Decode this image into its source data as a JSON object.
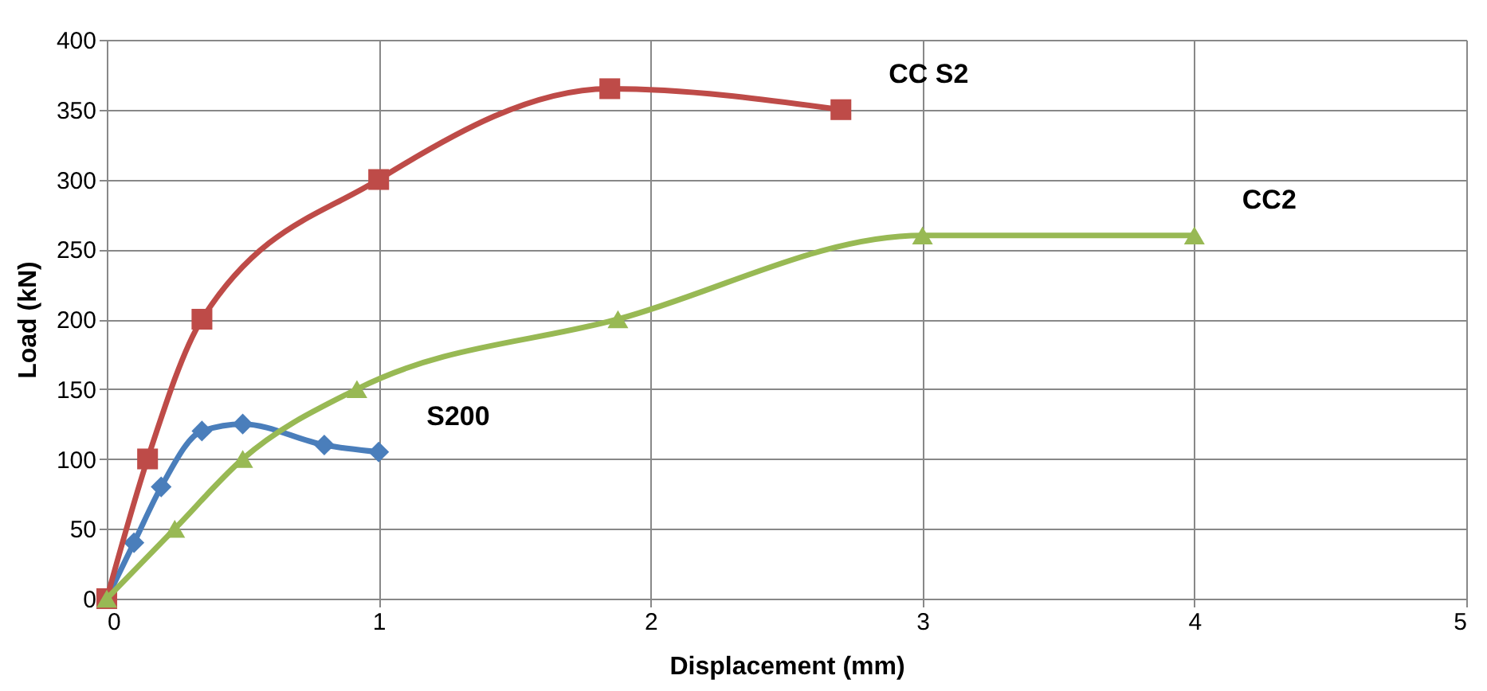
{
  "chart_data": {
    "type": "line",
    "xlabel": "Displacement (mm)",
    "ylabel": "Load (kN)",
    "xlim": [
      0,
      5
    ],
    "xticks": [
      0,
      1,
      2,
      3,
      4,
      5
    ],
    "ylim": [
      0,
      400
    ],
    "yticks": [
      0,
      50,
      100,
      150,
      200,
      250,
      300,
      350,
      400
    ],
    "grid": true,
    "legend": false,
    "series": [
      {
        "name": "S200",
        "color": "#4a7ebb",
        "marker": "diamond",
        "x": [
          0,
          0.1,
          0.2,
          0.35,
          0.5,
          0.8,
          1.0
        ],
        "values": [
          0,
          40,
          80,
          120,
          125,
          110,
          105
        ]
      },
      {
        "name": "CC S2",
        "color": "#be4b48",
        "marker": "square",
        "x": [
          0,
          0.15,
          0.35,
          1.0,
          1.85,
          2.7
        ],
        "values": [
          0,
          100,
          200,
          300,
          365,
          350
        ]
      },
      {
        "name": "CC2",
        "color": "#98b954",
        "marker": "triangle",
        "x": [
          0,
          0.25,
          0.5,
          0.92,
          1.88,
          3.0,
          4.0
        ],
        "values": [
          0,
          50,
          100,
          150,
          200,
          260,
          260
        ]
      }
    ]
  }
}
